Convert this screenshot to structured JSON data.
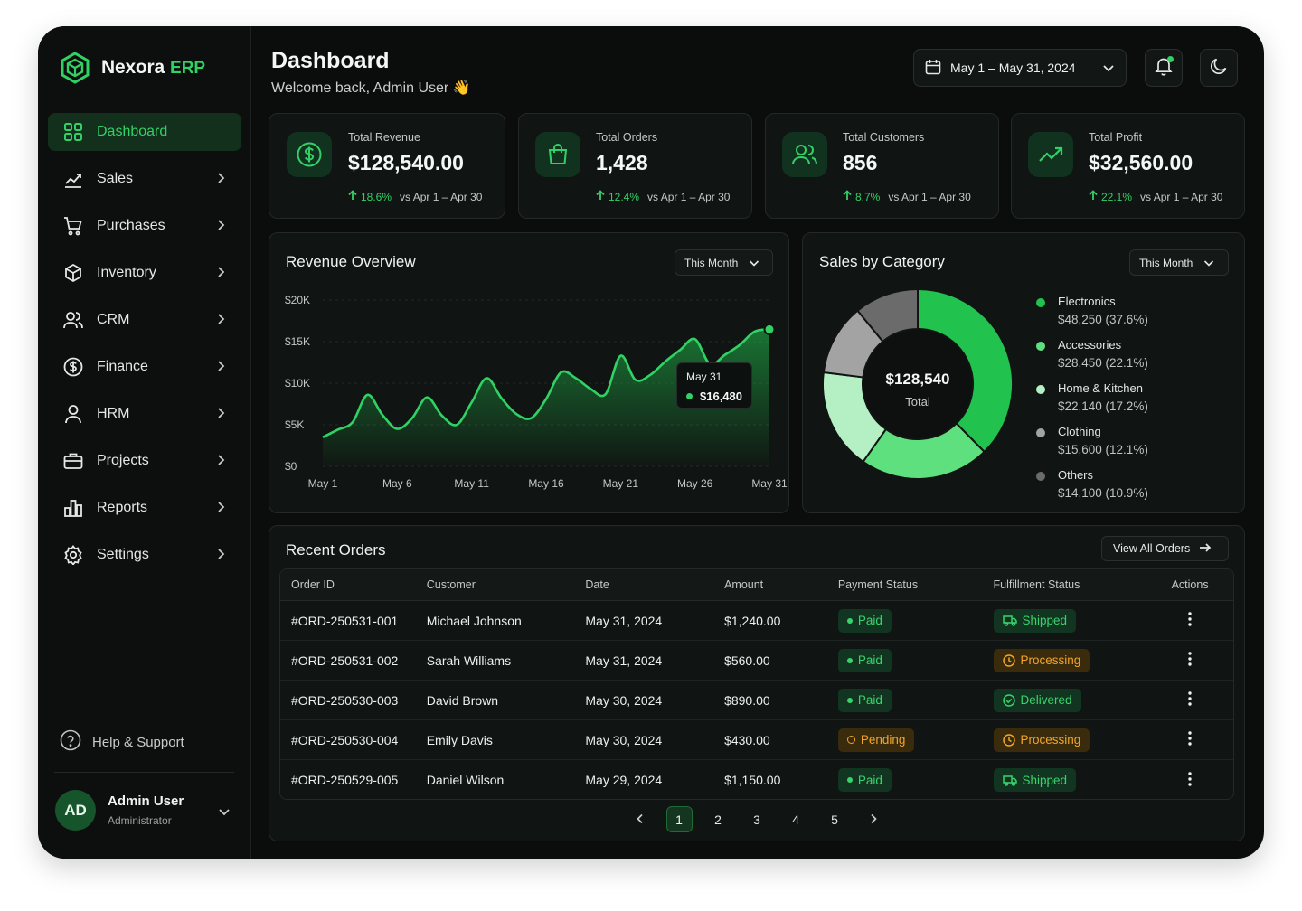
{
  "brand": {
    "name": "Nexora",
    "accent": "ERP"
  },
  "nav": [
    {
      "label": "Dashboard",
      "icon": "dashboard-grid-icon",
      "active": true
    },
    {
      "label": "Sales",
      "icon": "sales-chart-icon"
    },
    {
      "label": "Purchases",
      "icon": "cart-icon"
    },
    {
      "label": "Inventory",
      "icon": "box-icon"
    },
    {
      "label": "CRM",
      "icon": "users-icon"
    },
    {
      "label": "Finance",
      "icon": "dollar-circle-icon"
    },
    {
      "label": "HRM",
      "icon": "user-icon"
    },
    {
      "label": "Projects",
      "icon": "briefcase-icon"
    },
    {
      "label": "Reports",
      "icon": "bar-chart-icon"
    },
    {
      "label": "Settings",
      "icon": "gear-icon"
    }
  ],
  "help": {
    "label": "Help & Support"
  },
  "user": {
    "initials": "AD",
    "name": "Admin User",
    "role": "Administrator"
  },
  "header": {
    "title": "Dashboard",
    "subtitle": "Welcome back, Admin User 👋",
    "date_range": "May 1 – May 31, 2024"
  },
  "kpis": [
    {
      "label": "Total Revenue",
      "value": "$128,540.00",
      "delta": "18.6%",
      "compare": "vs Apr 1 – Apr 30",
      "icon": "dollar-circle-icon"
    },
    {
      "label": "Total Orders",
      "value": "1,428",
      "delta": "12.4%",
      "compare": "vs Apr 1 – Apr 30",
      "icon": "shopping-bag-icon"
    },
    {
      "label": "Total Customers",
      "value": "856",
      "delta": "8.7%",
      "compare": "vs Apr 1 – Apr 30",
      "icon": "users-icon"
    },
    {
      "label": "Total Profit",
      "value": "$32,560.00",
      "delta": "22.1%",
      "compare": "vs Apr 1 – Apr 30",
      "icon": "trending-up-icon"
    }
  ],
  "revenue": {
    "title": "Revenue Overview",
    "period": "This Month",
    "tooltip": {
      "date": "May 31",
      "value": "$16,480"
    },
    "y_ticks": [
      "$20K",
      "$15K",
      "$10K",
      "$5K",
      "$0"
    ],
    "x_ticks": [
      "May 1",
      "May 6",
      "May 11",
      "May 16",
      "May 21",
      "May 26",
      "May 31"
    ]
  },
  "category": {
    "title": "Sales by Category",
    "period": "This Month",
    "total_value": "$128,540",
    "total_label": "Total",
    "items": [
      {
        "name": "Electronics",
        "value": "$48,250 (37.6%)",
        "pct": 37.6,
        "color": "#22c24f"
      },
      {
        "name": "Accessories",
        "value": "$28,450 (22.1%)",
        "pct": 22.1,
        "color": "#5fe07f"
      },
      {
        "name": "Home & Kitchen",
        "value": "$22,140 (17.2%)",
        "pct": 17.2,
        "color": "#b5f0c4"
      },
      {
        "name": "Clothing",
        "value": "$15,600 (12.1%)",
        "pct": 12.1,
        "color": "#a3a3a3"
      },
      {
        "name": "Others",
        "value": "$14,100 (10.9%)",
        "pct": 10.9,
        "color": "#6b6b6b"
      }
    ]
  },
  "orders": {
    "title": "Recent Orders",
    "view_all": "View All Orders",
    "columns": [
      "Order ID",
      "Customer",
      "Date",
      "Amount",
      "Payment Status",
      "Fulfillment Status",
      "Actions"
    ],
    "rows": [
      {
        "id": "#ORD-250531-001",
        "customer": "Michael Johnson",
        "date": "May 31, 2024",
        "amount": "$1,240.00",
        "payment": "Paid",
        "pay_tone": "green",
        "fulfillment": "Shipped",
        "ful_tone": "green",
        "ful_icon": "truck-icon"
      },
      {
        "id": "#ORD-250531-002",
        "customer": "Sarah Williams",
        "date": "May 31, 2024",
        "amount": "$560.00",
        "payment": "Paid",
        "pay_tone": "green",
        "fulfillment": "Processing",
        "ful_tone": "amber",
        "ful_icon": "clock-icon"
      },
      {
        "id": "#ORD-250530-003",
        "customer": "David Brown",
        "date": "May 30, 2024",
        "amount": "$890.00",
        "payment": "Paid",
        "pay_tone": "green",
        "fulfillment": "Delivered",
        "ful_tone": "green",
        "ful_icon": "check-circle-icon"
      },
      {
        "id": "#ORD-250530-004",
        "customer": "Emily Davis",
        "date": "May 30, 2024",
        "amount": "$430.00",
        "payment": "Pending",
        "pay_tone": "amber",
        "fulfillment": "Processing",
        "ful_tone": "amber",
        "ful_icon": "clock-icon"
      },
      {
        "id": "#ORD-250529-005",
        "customer": "Daniel Wilson",
        "date": "May 29, 2024",
        "amount": "$1,150.00",
        "payment": "Paid",
        "pay_tone": "green",
        "fulfillment": "Shipped",
        "ful_tone": "green",
        "ful_icon": "truck-icon"
      }
    ],
    "pages": [
      "1",
      "2",
      "3",
      "4",
      "5"
    ],
    "current_page": "1"
  },
  "chart_data": {
    "type": "area",
    "title": "Revenue Overview",
    "xlabel": "",
    "ylabel": "",
    "ylim": [
      0,
      20000
    ],
    "x": [
      "May 1",
      "May 2",
      "May 3",
      "May 4",
      "May 5",
      "May 6",
      "May 7",
      "May 8",
      "May 9",
      "May 10",
      "May 11",
      "May 12",
      "May 13",
      "May 14",
      "May 15",
      "May 16",
      "May 17",
      "May 18",
      "May 19",
      "May 20",
      "May 21",
      "May 22",
      "May 23",
      "May 24",
      "May 25",
      "May 26",
      "May 27",
      "May 28",
      "May 29",
      "May 30",
      "May 31"
    ],
    "series": [
      {
        "values": [
          3500,
          4400,
          5300,
          8600,
          6200,
          4500,
          5800,
          8300,
          6100,
          5000,
          7700,
          10600,
          8200,
          6300,
          5800,
          8100,
          11300,
          10600,
          9300,
          8700,
          13300,
          10400,
          11000,
          12600,
          14000,
          15300,
          12300,
          13400,
          14600,
          16200,
          16480
        ]
      }
    ],
    "grid": true,
    "x_ticks": [
      "May 1",
      "May 6",
      "May 11",
      "May 16",
      "May 21",
      "May 26",
      "May 31"
    ],
    "y_ticks": [
      "$0",
      "$5K",
      "$10K",
      "$15K",
      "$20K"
    ]
  }
}
